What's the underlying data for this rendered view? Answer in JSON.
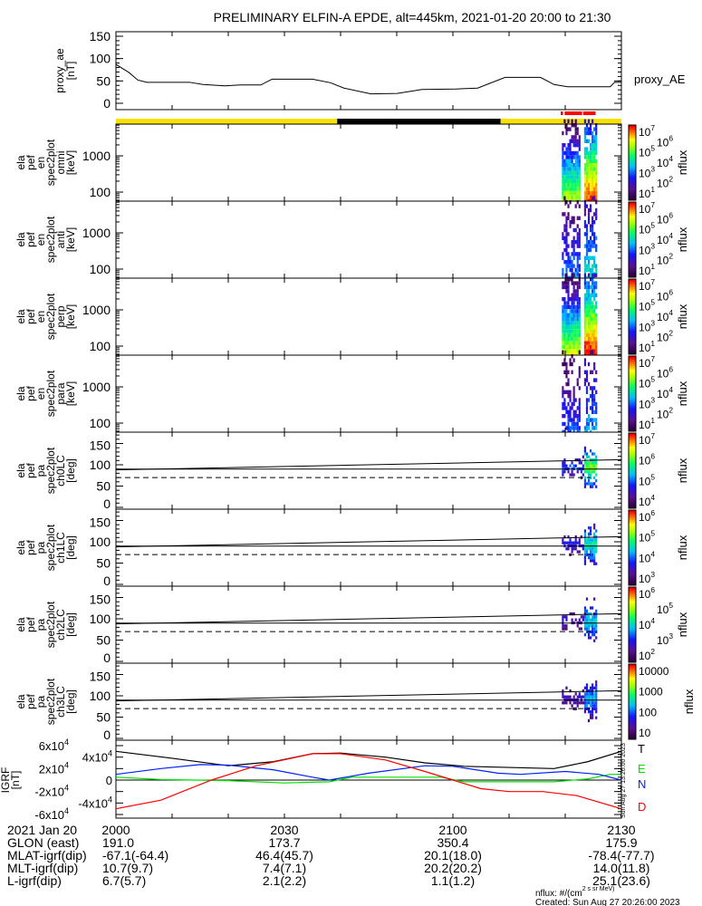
{
  "title": "PRELIMINARY ELFIN-A EPDE, alt=445km, 2021-01-20 20:00 to 21:30",
  "chart_data": {
    "type": "line",
    "x_unit": "minutes after 2021-01-20 20:00",
    "xlim": [
      0,
      90
    ],
    "proxy_ae": {
      "label_lines": [
        "proxy_ae",
        "[nT]"
      ],
      "yticks": [
        "0",
        "50",
        "100",
        "150"
      ],
      "ylim": [
        -14,
        160
      ],
      "legend": "proxy_AE",
      "t": [
        0,
        2.3,
        3.9,
        5.5,
        13.1,
        15.5,
        19.4,
        22.2,
        25.8,
        27.8,
        35,
        38.2,
        40.6,
        45.4,
        50.1,
        54.5,
        60.5,
        64.4,
        69.3,
        75.6,
        78,
        80.4,
        88,
        88.8,
        90
      ],
      "v": [
        87,
        69,
        52,
        47,
        47,
        42,
        39,
        41,
        41,
        54,
        54,
        46,
        34,
        21,
        22,
        31,
        32,
        34,
        58,
        58,
        42,
        37,
        37,
        47,
        47
      ]
    },
    "sunlight_bar": [
      {
        "start": 0,
        "end": 39.4,
        "color": "#f8e000"
      },
      {
        "start": 39.4,
        "end": 68.5,
        "color": "#000000"
      },
      {
        "start": 68.5,
        "end": 90,
        "color": "#f8e000"
      }
    ],
    "science_zone_bar": [
      {
        "start": 79.2,
        "end": 79.6,
        "color": "#ff0000"
      },
      {
        "start": 79.9,
        "end": 83.0,
        "color": "#ff0000"
      },
      {
        "start": 83.2,
        "end": 85.4,
        "color": "#ff0000"
      }
    ],
    "spectrogram_panels": [
      {
        "label_lines": [
          "ela",
          "pef",
          "en",
          "spec2plot",
          "omni",
          "[keV]"
        ],
        "kind": "energy",
        "yticks": [
          "1000",
          "100"
        ],
        "colorbar": {
          "title": "nflux",
          "labels": [
            "10^7",
            "10^6",
            "10^5",
            "10^4",
            "10^3",
            "10^2",
            "10^1"
          ]
        },
        "strength": 1.0
      },
      {
        "label_lines": [
          "ela",
          "pef",
          "en",
          "spec2plot",
          "anti",
          "[keV]"
        ],
        "kind": "energy",
        "yticks": [
          "1000",
          "100"
        ],
        "colorbar": {
          "title": "nflux",
          "labels": [
            "10^7",
            "10^6",
            "10^5",
            "10^4",
            "10^3",
            "10^2",
            "10^1"
          ]
        },
        "strength": 0.55
      },
      {
        "label_lines": [
          "ela",
          "pef",
          "en",
          "spec2plot",
          "perp",
          "[keV]"
        ],
        "kind": "energy",
        "yticks": [
          "1000",
          "100"
        ],
        "colorbar": {
          "title": "nflux",
          "labels": [
            "10^7",
            "10^6",
            "10^5",
            "10^4",
            "10^3",
            "10^2",
            "10^1"
          ]
        },
        "strength": 1.05
      },
      {
        "label_lines": [
          "ela",
          "pef",
          "en",
          "spec2plot",
          "para",
          "[keV]"
        ],
        "kind": "energy",
        "yticks": [
          "1000",
          "100"
        ],
        "colorbar": {
          "title": "nflux",
          "labels": [
            "10^7",
            "10^6",
            "10^5",
            "10^4",
            "10^3",
            "10^2",
            "10^1"
          ]
        },
        "strength": 0.45
      },
      {
        "label_lines": [
          "ela",
          "pef",
          "pa",
          "spec2plot",
          "ch0LC",
          "[deg]"
        ],
        "kind": "pa",
        "yticks": [
          "0",
          "50",
          "100",
          "150"
        ],
        "colorbar": {
          "title": "nflux",
          "labels": [
            "10^7",
            "10^6",
            "10^5",
            "10^4"
          ]
        },
        "strength": 0.85
      },
      {
        "label_lines": [
          "ela",
          "pef",
          "pa",
          "spec2plot",
          "ch1LC",
          "[deg]"
        ],
        "kind": "pa",
        "yticks": [
          "0",
          "50",
          "100",
          "150"
        ],
        "colorbar": {
          "title": "nflux",
          "labels": [
            "10^6",
            "10^5",
            "10^4",
            "10^3"
          ]
        },
        "strength": 0.7
      },
      {
        "label_lines": [
          "ela",
          "pef",
          "pa",
          "spec2plot",
          "ch2LC",
          "[deg]"
        ],
        "kind": "pa",
        "yticks": [
          "0",
          "50",
          "100",
          "150"
        ],
        "colorbar": {
          "title": "nflux",
          "labels": [
            "10^6",
            "10^5",
            "10^4",
            "10^3",
            "10^2"
          ]
        },
        "strength": 0.6
      },
      {
        "label_lines": [
          "ela",
          "pef",
          "pa",
          "spec2plot",
          "ch3LC",
          "[deg]"
        ],
        "kind": "pa",
        "yticks": [
          "0",
          "50",
          "100",
          "150"
        ],
        "colorbar": {
          "title": "nflux",
          "labels": [
            "10000",
            "1000",
            "100",
            "10"
          ]
        },
        "strength": 0.55
      }
    ],
    "pa_reference_lines": {
      "loss_cone_start": 88,
      "loss_cone_end": 112,
      "ninety": 90,
      "dashed": 70
    },
    "igrf": {
      "label_lines": [
        "IGRF",
        "[nT]"
      ],
      "yticks": [
        "6x10^4",
        "4x10^4",
        "2x10^4",
        "0",
        "-2x10^4",
        "-4x10^4",
        "-6x10^4"
      ],
      "ylim": [
        -65000,
        65000
      ],
      "series": [
        {
          "name": "T",
          "color": "#000000",
          "t": [
            0,
            10,
            20,
            28,
            35,
            40,
            48,
            55,
            62,
            70,
            78,
            84,
            90
          ],
          "v": [
            50000,
            38000,
            25000,
            32000,
            46000,
            47000,
            40000,
            30000,
            24000,
            22000,
            20000,
            32000,
            50000
          ]
        },
        {
          "name": "E",
          "color": "#00e000",
          "t": [
            0,
            8,
            20,
            30,
            38,
            42,
            58,
            62,
            70,
            78,
            84,
            88,
            90
          ],
          "v": [
            5000,
            1000,
            -1000,
            -5000,
            -3000,
            5000,
            5000,
            -3000,
            -3000,
            -3000,
            2000,
            10000,
            10000
          ]
        },
        {
          "name": "N",
          "color": "#0020ff",
          "t": [
            0,
            8,
            15,
            20,
            28,
            35,
            38,
            45,
            55,
            60,
            68,
            72,
            80,
            86,
            90
          ],
          "v": [
            10000,
            20000,
            27000,
            26000,
            18000,
            5000,
            0,
            12000,
            25000,
            24000,
            12000,
            10000,
            15000,
            10000,
            0
          ]
        },
        {
          "name": "D",
          "color": "#ff0000",
          "t": [
            0,
            8,
            17,
            25,
            35,
            40,
            48,
            55,
            60,
            65,
            70,
            76,
            82,
            90
          ],
          "v": [
            -50000,
            -35000,
            0,
            25000,
            46000,
            46000,
            35000,
            15000,
            0,
            -15000,
            -20000,
            -20000,
            -27000,
            -50000
          ]
        }
      ]
    }
  },
  "footer": {
    "rows": [
      {
        "label": "2021 Jan 20",
        "values": [
          "2000",
          "2030",
          "2100",
          "2130"
        ]
      },
      {
        "label": "GLON (east)",
        "values": [
          "191.0",
          "173.7",
          "350.4",
          "175.9"
        ]
      },
      {
        "label": "MLAT-igrf(dip)",
        "values": [
          "-67.1(-64.4)",
          "46.4(45.7)",
          "20.1(18.0)",
          "-78.4(-77.7)"
        ]
      },
      {
        "label": "MLT-igrf(dip)",
        "values": [
          "10.7(9.7)",
          "7.4(7.1)",
          "20.2(20.2)",
          "14.0(11.8)"
        ]
      },
      {
        "label": "L-igrf(dip)",
        "values": [
          "6.7(5.7)",
          "2.1(2.2)",
          "1.1(1.2)",
          "25.1(23.6)"
        ]
      }
    ],
    "tick_minutes": [
      0,
      30,
      60,
      90
    ],
    "stamp": "Sun Aug 27 13:26:00 2023",
    "units_note": "nflux: #/(cm^2 s sr MeV)",
    "created": "Created: Sun Aug 27 20:26:00 2023"
  }
}
